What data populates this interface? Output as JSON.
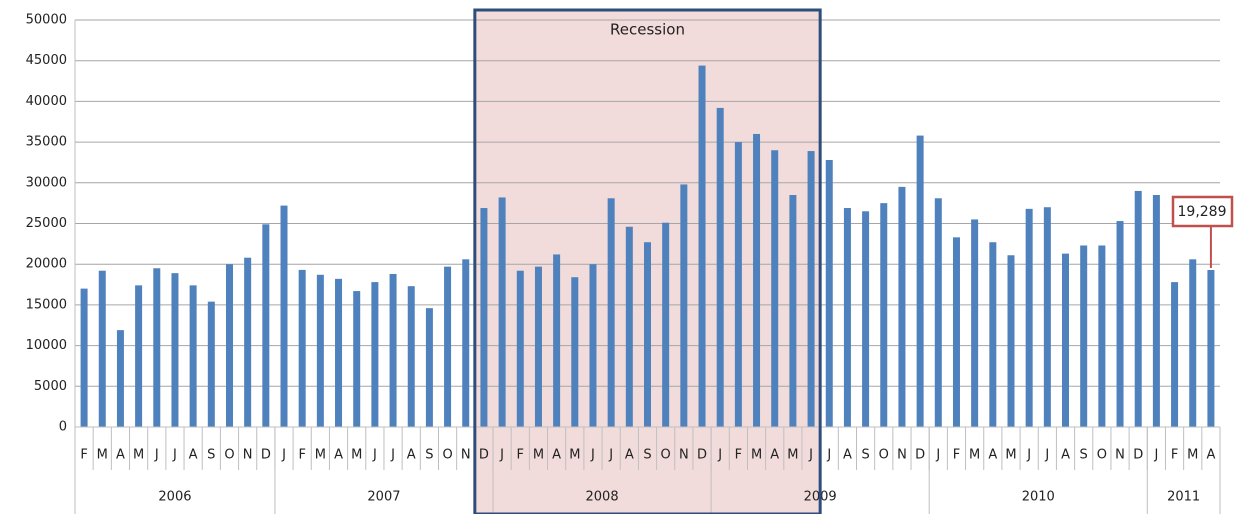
{
  "chart_data": {
    "type": "bar",
    "categories": [
      "F",
      "M",
      "A",
      "M",
      "J",
      "J",
      "A",
      "S",
      "O",
      "N",
      "D",
      "J",
      "F",
      "M",
      "A",
      "M",
      "J",
      "J",
      "A",
      "S",
      "O",
      "N",
      "D",
      "J",
      "F",
      "M",
      "A",
      "M",
      "J",
      "J",
      "A",
      "S",
      "O",
      "N",
      "D",
      "J",
      "F",
      "M",
      "A",
      "M",
      "J",
      "J",
      "A",
      "S",
      "O",
      "N",
      "D",
      "J",
      "F",
      "M",
      "A",
      "M",
      "J",
      "J",
      "A",
      "S",
      "O",
      "N",
      "D",
      "J",
      "F",
      "M",
      "A"
    ],
    "years": [
      "2006",
      "2007",
      "2008",
      "2009",
      "2010",
      "2011"
    ],
    "values": [
      17000,
      19200,
      11900,
      17400,
      19500,
      18900,
      17400,
      15400,
      20000,
      20800,
      24900,
      27200,
      19300,
      18700,
      18200,
      16700,
      17800,
      18800,
      17300,
      14600,
      19700,
      20600,
      26900,
      28200,
      19200,
      19700,
      21200,
      18400,
      20000,
      28100,
      24600,
      22700,
      25100,
      29800,
      44400,
      39200,
      35000,
      36000,
      34000,
      28500,
      33900,
      32800,
      26900,
      26500,
      27500,
      29500,
      35800,
      28100,
      23300,
      25500,
      22700,
      21100,
      26800,
      27000,
      21300,
      22300,
      22300,
      25300,
      29000,
      28500,
      17800,
      20600,
      19289
    ],
    "color": "#4f81bd",
    "ylim": [
      0,
      50000
    ],
    "yticks": [
      0,
      5000,
      10000,
      15000,
      20000,
      25000,
      30000,
      35000,
      40000,
      45000,
      50000
    ],
    "grid": true,
    "shaded_range": {
      "label": "Recession",
      "start_index": 22,
      "end_index": 40
    },
    "annotation": {
      "text": "19,289",
      "index": 62
    }
  }
}
